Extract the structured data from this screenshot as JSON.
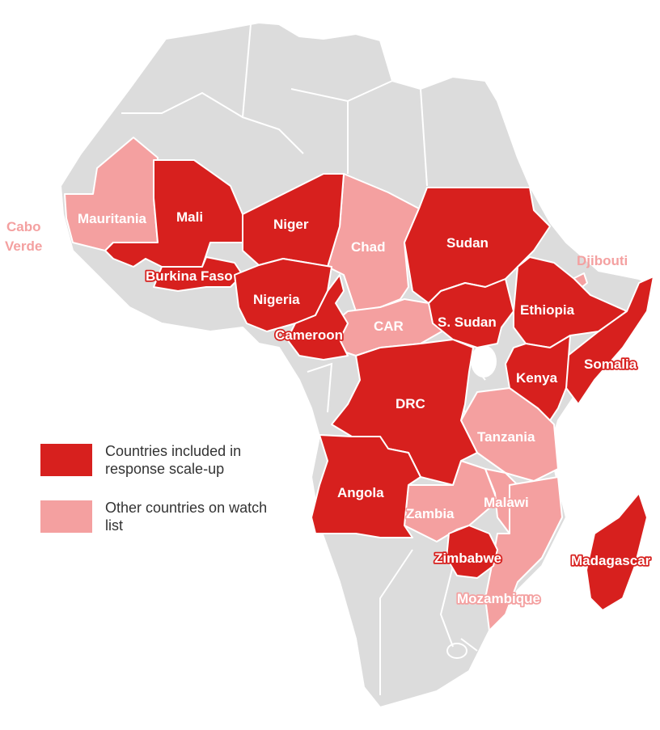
{
  "colors": {
    "included": "#d7201e",
    "watch": "#f4a0a0",
    "other_land": "#dcdcdc"
  },
  "legend": {
    "included_label": "Countries included in response scale-up",
    "watch_label": "Other countries on watch list"
  },
  "countries": {
    "mali": {
      "label": "Mali",
      "status": "included"
    },
    "niger": {
      "label": "Niger",
      "status": "included"
    },
    "burkina_faso": {
      "label": "Burkina Faso",
      "status": "included"
    },
    "nigeria": {
      "label": "Nigeria",
      "status": "included"
    },
    "cameroon": {
      "label": "Cameroon",
      "status": "included"
    },
    "sudan": {
      "label": "Sudan",
      "status": "included"
    },
    "south_sudan": {
      "label": "S. Sudan",
      "status": "included"
    },
    "ethiopia": {
      "label": "Ethiopia",
      "status": "included"
    },
    "somalia": {
      "label": "Somalia",
      "status": "included"
    },
    "kenya": {
      "label": "Kenya",
      "status": "included"
    },
    "drc": {
      "label": "DRC",
      "status": "included"
    },
    "angola": {
      "label": "Angola",
      "status": "included"
    },
    "zimbabwe": {
      "label": "Zimbabwe",
      "status": "included"
    },
    "madagascar": {
      "label": "Madagascar",
      "status": "included"
    },
    "mauritania": {
      "label": "Mauritania",
      "status": "watch"
    },
    "chad": {
      "label": "Chad",
      "status": "watch"
    },
    "car": {
      "label": "CAR",
      "status": "watch"
    },
    "djibouti": {
      "label": "Djibouti",
      "status": "watch"
    },
    "tanzania": {
      "label": "Tanzania",
      "status": "watch"
    },
    "zambia": {
      "label": "Zambia",
      "status": "watch"
    },
    "malawi": {
      "label": "Malawi",
      "status": "watch"
    },
    "mozambique": {
      "label": "Mozambique",
      "status": "watch"
    },
    "cabo_verde": {
      "label_line1": "Cabo",
      "label_line2": "Verde",
      "status": "watch"
    }
  }
}
